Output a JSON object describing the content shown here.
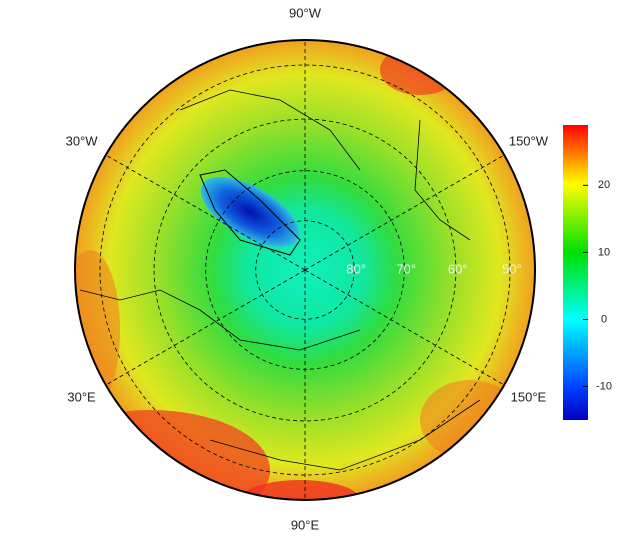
{
  "chart_data": {
    "type": "polar-map",
    "lon_ticks": [
      {
        "value": -90,
        "label": "90°W"
      },
      {
        "value": -30,
        "label": "30°W"
      },
      {
        "value": -150,
        "label": "150°W"
      },
      {
        "value": 30,
        "label": "30°E"
      },
      {
        "value": 150,
        "label": "150°E"
      },
      {
        "value": 90,
        "label": "90°E"
      }
    ],
    "lat_ticks": [
      {
        "value": 80,
        "label": "80°"
      },
      {
        "value": 70,
        "label": "70°"
      },
      {
        "value": 60,
        "label": "60°"
      },
      {
        "value": 50,
        "label": "50°"
      }
    ],
    "clim": [
      -15,
      29
    ],
    "cticks": [
      20,
      10,
      0,
      -10
    ]
  }
}
